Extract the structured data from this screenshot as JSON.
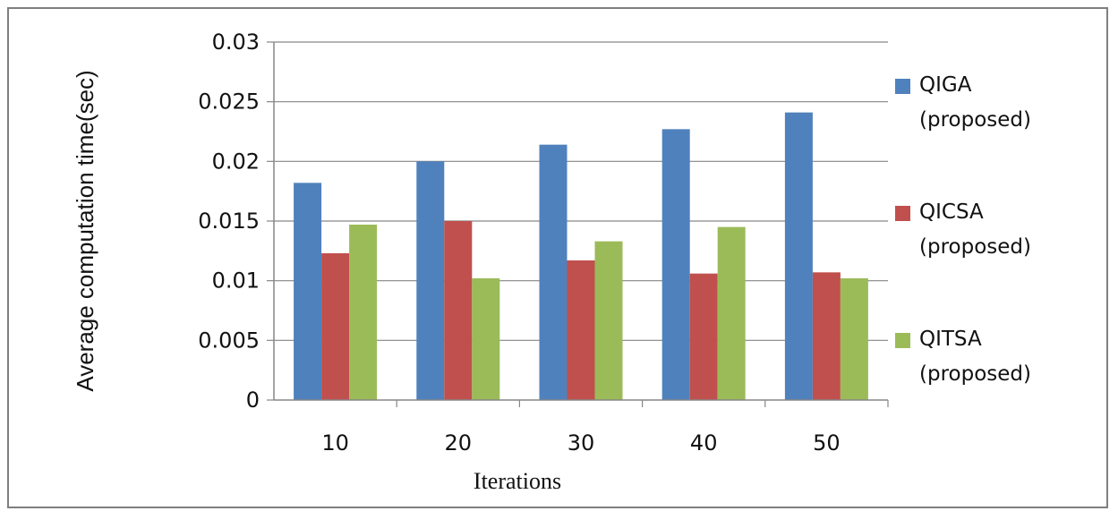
{
  "chart_data": {
    "type": "bar",
    "title": "",
    "xlabel": "Iterations",
    "ylabel": "Average computation time(sec)",
    "categories": [
      "10",
      "20",
      "30",
      "40",
      "50"
    ],
    "ylim": [
      0,
      0.03
    ],
    "yticks": [
      "0",
      "0.005",
      "0.01",
      "0.015",
      "0.02",
      "0.025",
      "0.03"
    ],
    "grid": true,
    "legend_position": "right",
    "series": [
      {
        "name": "QIGA (proposed)",
        "legend_lines": [
          "QIGA",
          "(proposed)"
        ],
        "color": "#4f81bd",
        "values": [
          0.0182,
          0.02,
          0.0214,
          0.0227,
          0.0241
        ]
      },
      {
        "name": "QICSA (proposed)",
        "legend_lines": [
          "QICSA",
          "(proposed)"
        ],
        "color": "#c0504d",
        "values": [
          0.0123,
          0.015,
          0.0117,
          0.0106,
          0.0107
        ]
      },
      {
        "name": "QITSA (proposed)",
        "legend_lines": [
          "QITSA",
          "(proposed)"
        ],
        "color": "#9bbb59",
        "values": [
          0.0147,
          0.0102,
          0.0133,
          0.0145,
          0.0102
        ]
      }
    ]
  }
}
